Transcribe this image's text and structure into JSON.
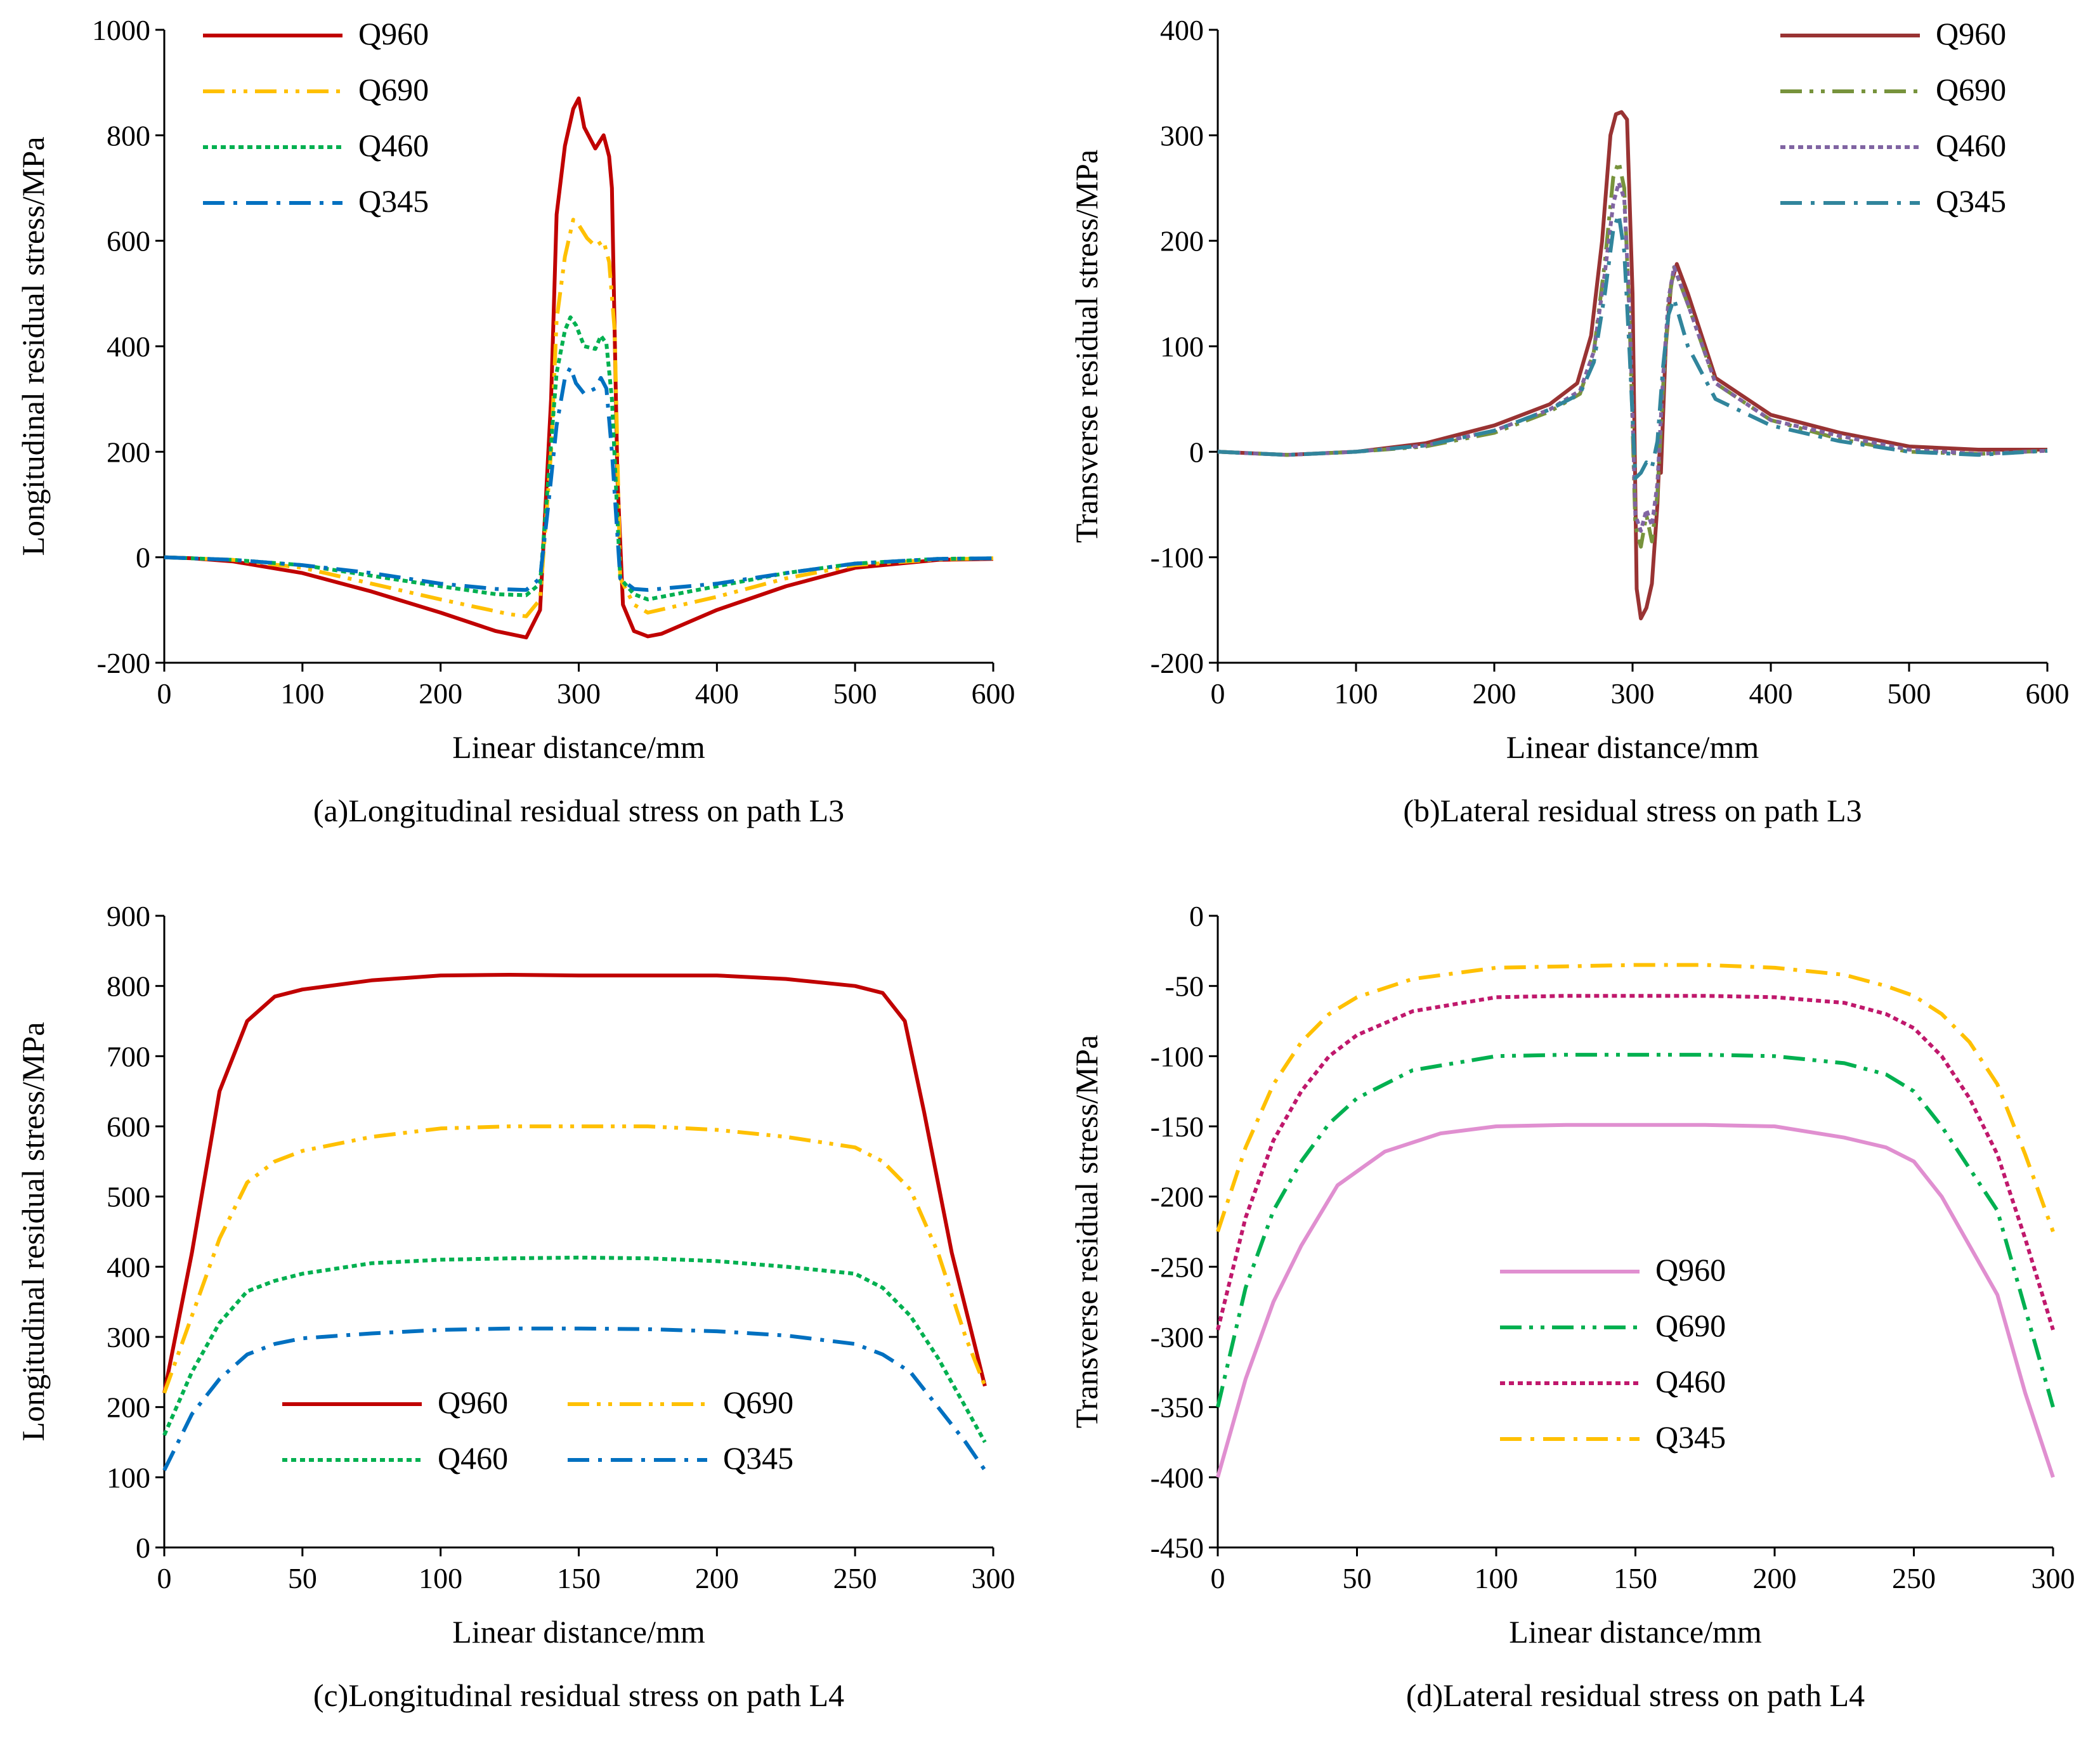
{
  "chart_data": [
    {
      "id": "a",
      "type": "line",
      "caption": "(a)Longitudinal residual stress on path L3",
      "xlabel": "Linear distance/mm",
      "ylabel": "Longitudinal residual stress/MPa",
      "xlim": [
        0,
        600
      ],
      "ylim": [
        -200,
        1000
      ],
      "xticks": [
        0,
        100,
        200,
        300,
        400,
        500,
        600
      ],
      "yticks": [
        -200,
        0,
        200,
        400,
        600,
        800,
        1000
      ],
      "legend": {
        "position": "top-left",
        "columns": 1
      },
      "series": [
        {
          "name": "Q960",
          "color": "#c00000",
          "dash": "solid",
          "x": [
            0,
            20,
            50,
            100,
            150,
            200,
            240,
            262,
            272,
            280,
            284,
            290,
            296,
            300,
            304,
            312,
            318,
            322,
            324,
            328,
            332,
            340,
            350,
            360,
            400,
            450,
            500,
            560,
            600
          ],
          "y": [
            0,
            -2,
            -8,
            -30,
            -65,
            -105,
            -140,
            -152,
            -100,
            300,
            650,
            780,
            850,
            870,
            815,
            775,
            800,
            760,
            700,
            150,
            -90,
            -140,
            -150,
            -145,
            -100,
            -55,
            -20,
            -5,
            -3
          ]
        },
        {
          "name": "Q690",
          "color": "#ffc000",
          "dash": "dashdotdot",
          "x": [
            0,
            50,
            100,
            150,
            200,
            250,
            262,
            272,
            280,
            284,
            290,
            296,
            300,
            306,
            312,
            318,
            322,
            326,
            330,
            340,
            350,
            400,
            450,
            500,
            560,
            600
          ],
          "y": [
            0,
            -5,
            -20,
            -50,
            -80,
            -108,
            -112,
            -80,
            200,
            450,
            570,
            640,
            630,
            605,
            590,
            600,
            560,
            430,
            -40,
            -90,
            -105,
            -75,
            -40,
            -15,
            -4,
            -2
          ]
        },
        {
          "name": "Q460",
          "color": "#00b050",
          "dash": "dot",
          "x": [
            0,
            50,
            100,
            150,
            200,
            240,
            262,
            272,
            278,
            284,
            290,
            294,
            298,
            304,
            312,
            316,
            320,
            324,
            330,
            340,
            350,
            400,
            450,
            500,
            560,
            600
          ],
          "y": [
            0,
            -5,
            -15,
            -35,
            -55,
            -70,
            -72,
            -50,
            150,
            350,
            430,
            455,
            440,
            400,
            395,
            420,
            405,
            300,
            -40,
            -70,
            -80,
            -55,
            -30,
            -12,
            -3,
            -2
          ]
        },
        {
          "name": "Q345",
          "color": "#0070c0",
          "dash": "dashdot",
          "x": [
            0,
            50,
            100,
            150,
            200,
            240,
            262,
            272,
            278,
            284,
            290,
            294,
            298,
            304,
            312,
            316,
            320,
            324,
            330,
            340,
            350,
            400,
            450,
            500,
            560,
            600
          ],
          "y": [
            0,
            -5,
            -15,
            -30,
            -50,
            -60,
            -62,
            -40,
            100,
            250,
            340,
            360,
            330,
            310,
            320,
            340,
            320,
            200,
            -40,
            -60,
            -62,
            -50,
            -30,
            -12,
            -3,
            -2
          ]
        }
      ]
    },
    {
      "id": "b",
      "type": "line",
      "caption": "(b)Lateral residual stress on path L3",
      "xlabel": "Linear distance/mm",
      "ylabel": "Transverse residual stress/MPa",
      "xlim": [
        0,
        600
      ],
      "ylim": [
        -200,
        400
      ],
      "xticks": [
        0,
        100,
        200,
        300,
        400,
        500,
        600
      ],
      "yticks": [
        -200,
        -100,
        0,
        100,
        200,
        300,
        400
      ],
      "legend": {
        "position": "top-right",
        "columns": 1
      },
      "series": [
        {
          "name": "Q960",
          "color": "#993333",
          "dash": "solid",
          "x": [
            0,
            50,
            100,
            150,
            200,
            240,
            260,
            270,
            278,
            284,
            288,
            292,
            296,
            300,
            303,
            306,
            310,
            314,
            318,
            320,
            320.5,
            324,
            328,
            332,
            340,
            360,
            400,
            450,
            500,
            550,
            600
          ],
          "y": [
            0,
            -3,
            0,
            8,
            25,
            45,
            65,
            110,
            200,
            300,
            320,
            322,
            315,
            150,
            -130,
            -158,
            -148,
            -125,
            -50,
            15,
            -20,
            100,
            160,
            178,
            150,
            70,
            35,
            18,
            5,
            2,
            2
          ]
        },
        {
          "name": "Q690",
          "color": "#77933c",
          "dash": "dashdotdot",
          "x": [
            0,
            50,
            100,
            150,
            200,
            240,
            262,
            272,
            280,
            286,
            290,
            294,
            298,
            302,
            306,
            310,
            314,
            318,
            322,
            326,
            330,
            340,
            360,
            400,
            450,
            500,
            550,
            600
          ],
          "y": [
            0,
            -3,
            0,
            5,
            18,
            38,
            55,
            95,
            180,
            260,
            275,
            250,
            120,
            -70,
            -90,
            -60,
            -85,
            -40,
            60,
            140,
            175,
            140,
            65,
            30,
            12,
            0,
            -2,
            1
          ]
        },
        {
          "name": "Q460",
          "color": "#8064a2",
          "dash": "dot",
          "x": [
            0,
            50,
            100,
            150,
            200,
            240,
            262,
            272,
            280,
            286,
            290,
            294,
            298,
            302,
            306,
            310,
            314,
            318,
            322,
            326,
            330,
            340,
            360,
            400,
            450,
            500,
            550,
            600
          ],
          "y": [
            0,
            -3,
            0,
            6,
            20,
            40,
            58,
            95,
            170,
            235,
            255,
            240,
            130,
            -60,
            -75,
            -55,
            -70,
            -30,
            70,
            145,
            175,
            140,
            65,
            30,
            15,
            2,
            -2,
            1
          ]
        },
        {
          "name": "Q345",
          "color": "#31859c",
          "dash": "dashdot",
          "x": [
            0,
            50,
            100,
            150,
            200,
            240,
            262,
            272,
            280,
            286,
            290,
            294,
            298,
            302,
            306,
            310,
            314,
            318,
            322,
            326,
            330,
            340,
            360,
            400,
            450,
            500,
            550,
            600
          ],
          "y": [
            0,
            -3,
            0,
            6,
            20,
            40,
            55,
            85,
            150,
            210,
            225,
            190,
            90,
            -25,
            -20,
            -10,
            -15,
            10,
            80,
            130,
            145,
            100,
            50,
            25,
            10,
            0,
            -3,
            1
          ]
        }
      ]
    },
    {
      "id": "c",
      "type": "line",
      "caption": "(c)Longitudinal residual stress on path L4",
      "xlabel": "Linear distance/mm",
      "ylabel": "Longitudinal residual stress/MPa",
      "xlim": [
        0,
        300
      ],
      "ylim": [
        0,
        900
      ],
      "xticks": [
        0,
        50,
        100,
        150,
        200,
        250,
        300
      ],
      "yticks": [
        0,
        100,
        200,
        300,
        400,
        500,
        600,
        700,
        800,
        900
      ],
      "legend": {
        "position": "bottom-center",
        "columns": 2
      },
      "series": [
        {
          "name": "Q960",
          "color": "#c00000",
          "dash": "solid",
          "x": [
            0,
            10,
            20,
            30,
            40,
            50,
            75,
            100,
            125,
            150,
            175,
            200,
            225,
            250,
            260,
            268,
            275,
            285,
            297
          ],
          "y": [
            220,
            420,
            650,
            750,
            785,
            795,
            808,
            815,
            816,
            815,
            815,
            815,
            810,
            800,
            790,
            750,
            620,
            420,
            230
          ]
        },
        {
          "name": "Q690",
          "color": "#ffc000",
          "dash": "dashdotdot",
          "x": [
            0,
            10,
            20,
            30,
            40,
            50,
            75,
            100,
            125,
            150,
            175,
            200,
            225,
            250,
            260,
            270,
            280,
            290,
            297
          ],
          "y": [
            220,
            330,
            440,
            520,
            550,
            565,
            585,
            597,
            600,
            600,
            600,
            595,
            585,
            570,
            550,
            510,
            420,
            300,
            230
          ]
        },
        {
          "name": "Q460",
          "color": "#00b050",
          "dash": "dot",
          "x": [
            0,
            10,
            20,
            30,
            40,
            50,
            75,
            100,
            125,
            150,
            175,
            200,
            225,
            250,
            260,
            270,
            280,
            290,
            297
          ],
          "y": [
            160,
            250,
            320,
            365,
            380,
            390,
            405,
            410,
            412,
            413,
            412,
            408,
            400,
            390,
            370,
            330,
            270,
            200,
            150
          ]
        },
        {
          "name": "Q345",
          "color": "#0070c0",
          "dash": "dashdot",
          "x": [
            0,
            10,
            20,
            30,
            40,
            50,
            75,
            100,
            125,
            150,
            175,
            200,
            225,
            250,
            260,
            270,
            280,
            290,
            297
          ],
          "y": [
            110,
            190,
            240,
            275,
            290,
            298,
            305,
            310,
            312,
            312,
            311,
            308,
            302,
            290,
            275,
            250,
            200,
            150,
            110
          ]
        }
      ]
    },
    {
      "id": "d",
      "type": "line",
      "caption": "(d)Lateral residual stress on path L4",
      "xlabel": "Linear distance/mm",
      "ylabel": "Transverse residual stress/MPa",
      "xlim": [
        0,
        300
      ],
      "ylim": [
        -450,
        0
      ],
      "xticks": [
        0,
        50,
        100,
        150,
        200,
        250,
        300
      ],
      "yticks": [
        -450,
        -400,
        -350,
        -300,
        -250,
        -200,
        -150,
        -100,
        -50,
        0
      ],
      "legend": {
        "position": "bottom-center",
        "columns": 1
      },
      "series": [
        {
          "name": "Q960",
          "color": "#e08fd0",
          "dash": "solid",
          "x": [
            0,
            10,
            20,
            30,
            43,
            60,
            80,
            100,
            125,
            150,
            175,
            200,
            225,
            240,
            250,
            260,
            270,
            280,
            290,
            300
          ],
          "y": [
            -400,
            -330,
            -275,
            -235,
            -192,
            -168,
            -155,
            -150,
            -149,
            -149,
            -149,
            -150,
            -158,
            -165,
            -175,
            -200,
            -235,
            -270,
            -340,
            -400
          ]
        },
        {
          "name": "Q690",
          "color": "#00b050",
          "dash": "dashdotdot",
          "x": [
            0,
            10,
            20,
            30,
            40,
            50,
            70,
            100,
            125,
            150,
            175,
            200,
            225,
            240,
            250,
            260,
            270,
            280,
            290,
            300
          ],
          "y": [
            -350,
            -265,
            -210,
            -175,
            -148,
            -130,
            -110,
            -100,
            -99,
            -99,
            -99,
            -100,
            -105,
            -113,
            -125,
            -150,
            -180,
            -210,
            -280,
            -350
          ]
        },
        {
          "name": "Q460",
          "color": "#c0186c",
          "dash": "dot",
          "x": [
            0,
            10,
            20,
            30,
            40,
            50,
            70,
            100,
            125,
            150,
            175,
            200,
            225,
            240,
            250,
            260,
            270,
            280,
            290,
            300
          ],
          "y": [
            -295,
            -215,
            -160,
            -125,
            -100,
            -85,
            -68,
            -58,
            -57,
            -57,
            -57,
            -58,
            -62,
            -70,
            -80,
            -100,
            -130,
            -170,
            -230,
            -295
          ]
        },
        {
          "name": "Q345",
          "color": "#ffc000",
          "dash": "dashdot",
          "x": [
            0,
            10,
            20,
            30,
            40,
            50,
            70,
            100,
            125,
            150,
            175,
            200,
            225,
            240,
            250,
            260,
            270,
            280,
            290,
            300
          ],
          "y": [
            -225,
            -165,
            -120,
            -90,
            -70,
            -58,
            -45,
            -37,
            -36,
            -35,
            -35,
            -37,
            -42,
            -50,
            -57,
            -70,
            -90,
            -120,
            -170,
            -225
          ]
        }
      ]
    }
  ]
}
